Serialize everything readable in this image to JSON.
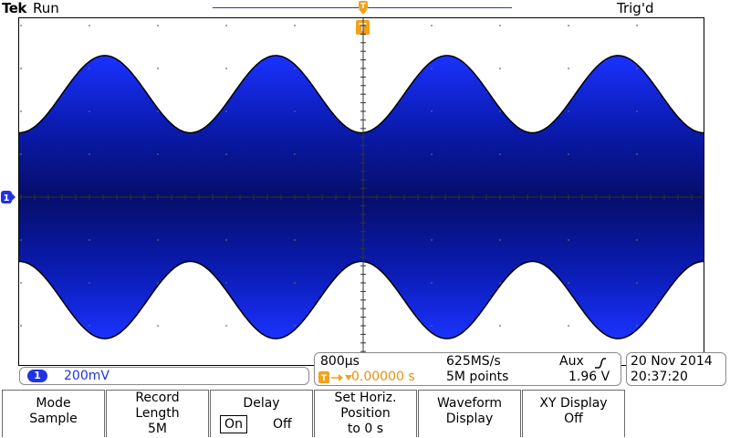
{
  "header": {
    "brand": "Tek",
    "run_state": "Run",
    "trigger_state": "Trig'd",
    "trigger_marker": "T"
  },
  "channel1": {
    "number": "1",
    "scale": "200mV",
    "color": "#2132e6"
  },
  "horizontal": {
    "time_per_div": "800µs",
    "sample_rate": "625MS/s",
    "trigger_source": "Aux",
    "trigger_position": "0.00000 s",
    "record_points": "5M points",
    "trigger_level": "1.96 V"
  },
  "datetime": {
    "date": "20 Nov 2014",
    "time": "20:37:20"
  },
  "softkeys": [
    {
      "line1": "Mode",
      "line2": "Sample"
    },
    {
      "line1": "Record Length",
      "line2": "5M"
    },
    {
      "line1": "Delay",
      "on": "On",
      "off": "Off",
      "selected": "On"
    },
    {
      "line1": "Set Horiz. Position",
      "line2": "to 0 s"
    },
    {
      "line1": "Waveform",
      "line2": "Display"
    },
    {
      "line1": "XY Display",
      "line2": "Off"
    }
  ],
  "waveform": {
    "type": "amplitude-modulated",
    "carrier_color": "#1515e8",
    "envelope_cycles": 4,
    "envelope_peak_divisions": 3.3,
    "envelope_trough_divisions": 1.5
  }
}
